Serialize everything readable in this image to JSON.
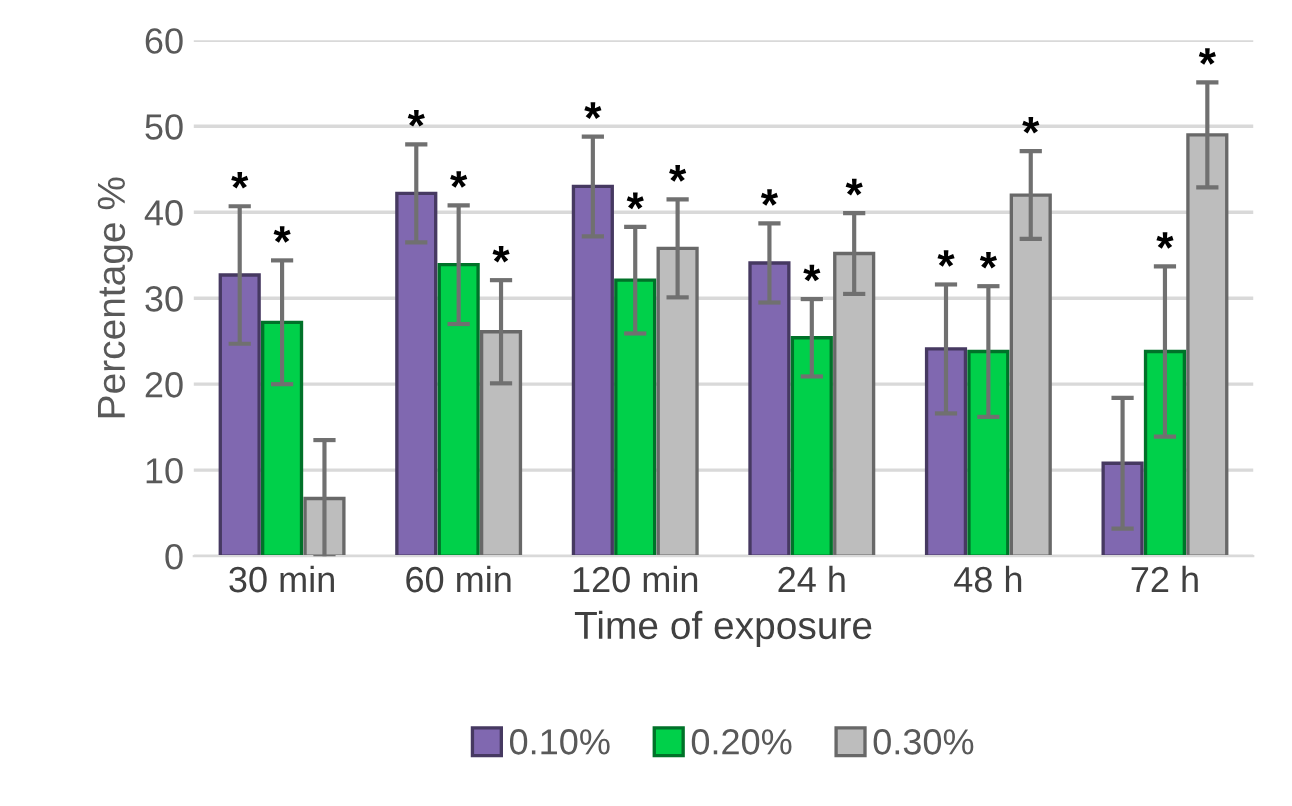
{
  "chart_data": {
    "type": "bar",
    "xlabel": "Time of exposure",
    "ylabel": "Percentage %",
    "categories": [
      "30 min",
      "60 min",
      "120 min",
      "24 h",
      "48 h",
      "72 h"
    ],
    "series": [
      {
        "name": "0.10%",
        "color": "#8068b0",
        "values": [
          32.7,
          42.2,
          43.0,
          34.1,
          24.1,
          10.8
        ],
        "errors": [
          8.0,
          5.7,
          5.8,
          4.6,
          7.5,
          7.6
        ],
        "value_labels": [
          "*",
          "*",
          "*",
          "*",
          "*",
          null
        ]
      },
      {
        "name": "0.20%",
        "color": "#00d04a",
        "values": [
          27.2,
          33.9,
          32.1,
          25.4,
          23.8,
          23.8
        ],
        "errors": [
          7.2,
          6.9,
          6.2,
          4.5,
          7.6,
          9.9
        ],
        "value_labels": [
          "*",
          "*",
          "*",
          "*",
          "*",
          "*"
        ]
      },
      {
        "name": "0.30%",
        "color": "#bdbdbd",
        "values": [
          6.7,
          26.1,
          35.8,
          35.2,
          42.0,
          49.0
        ],
        "errors": [
          6.8,
          6.0,
          5.7,
          4.7,
          5.1,
          6.1
        ],
        "value_labels": [
          null,
          "*",
          "*",
          "*",
          "*",
          "*"
        ]
      }
    ],
    "ylim": [
      0,
      60
    ],
    "yticks": [
      0,
      10,
      20,
      30,
      40,
      50,
      60
    ],
    "grid": "y",
    "legend": "bottom"
  }
}
